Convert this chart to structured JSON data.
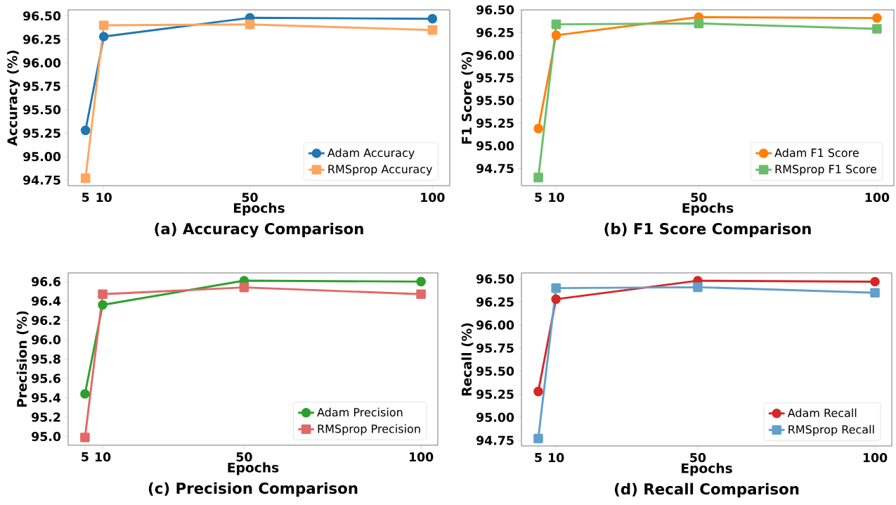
{
  "chart_data": [
    {
      "type": "line",
      "title": "(a) Accuracy Comparison",
      "xlabel": "Epochs",
      "ylabel": "Accuracy (%)",
      "x": [
        5,
        10,
        50,
        100
      ],
      "legend": "bottom right",
      "series": [
        {
          "name": "Adam Accuracy",
          "color": "#1f77b4",
          "marker": "circle",
          "values": [
            95.28,
            96.28,
            96.48,
            96.47
          ]
        },
        {
          "name": "RMSprop Accuracy",
          "color": "#ffa55e",
          "marker": "square",
          "values": [
            94.77,
            96.4,
            96.41,
            96.35
          ]
        }
      ],
      "xlim": [
        0.25,
        104.75
      ],
      "ylim": [
        94.69,
        96.565
      ],
      "xticks": [
        5,
        10,
        50,
        100
      ],
      "yticks": [
        94.75,
        {
          "value": 95,
          "label": "95.00"
        },
        {
          "value": 95.25,
          "label": "95.25"
        },
        {
          "value": 95.5,
          "label": "95.50"
        },
        {
          "value": 95.75,
          "label": "95.75"
        },
        {
          "value": 96,
          "label": "96.00"
        },
        {
          "value": 96.25,
          "label": "96.25"
        },
        {
          "value": 96.5,
          "label": "96.50"
        }
      ]
    },
    {
      "type": "line",
      "title": "(b) F1 Score Comparison",
      "xlabel": "Epochs",
      "ylabel": "F1 Score (%)",
      "x": [
        5,
        10,
        50,
        100
      ],
      "legend": "bottom right",
      "series": [
        {
          "name": "Adam F1 Score",
          "color": "#ff7f0e",
          "marker": "circle",
          "values": [
            95.19,
            96.22,
            96.42,
            96.41
          ]
        },
        {
          "name": "RMSprop F1 Score",
          "color": "#6bbd6b",
          "marker": "square",
          "values": [
            94.65,
            96.34,
            96.35,
            96.29
          ]
        }
      ],
      "xlim": [
        0.25,
        104.75
      ],
      "ylim": [
        94.56,
        96.5
      ],
      "xticks": [
        5,
        10,
        50,
        100
      ],
      "yticks": [
        94.75,
        {
          "value": 95,
          "label": "95.00"
        },
        {
          "value": 95.25,
          "label": "95.25"
        },
        {
          "value": 95.5,
          "label": "95.50"
        },
        {
          "value": 95.75,
          "label": "95.75"
        },
        {
          "value": 96,
          "label": "96.00"
        },
        {
          "value": 96.25,
          "label": "96.25"
        },
        {
          "value": 96.5,
          "label": "96.50"
        }
      ]
    },
    {
      "type": "line",
      "title": "(c) Precision Comparison",
      "xlabel": "Epochs",
      "ylabel": "Precision (%)",
      "x": [
        5,
        10,
        50,
        100
      ],
      "legend": "bottom right",
      "series": [
        {
          "name": "Adam Precision",
          "color": "#2ca02c",
          "marker": "circle",
          "values": [
            95.44,
            96.36,
            96.61,
            96.6
          ]
        },
        {
          "name": "RMSprop Precision",
          "color": "#e26868",
          "marker": "square",
          "values": [
            94.99,
            96.47,
            96.54,
            96.47
          ]
        }
      ],
      "xlim": [
        0.25,
        104.75
      ],
      "ylim": [
        94.91,
        96.69
      ],
      "xticks": [
        5,
        10,
        50,
        100
      ],
      "yticks": [
        {
          "value": 95,
          "label": "95.0"
        },
        95.2,
        95.4,
        95.6,
        95.8,
        {
          "value": 96,
          "label": "96.0"
        },
        96.2,
        96.4,
        96.6
      ]
    },
    {
      "type": "line",
      "title": "(d) Recall Comparison",
      "xlabel": "Epochs",
      "ylabel": "Recall (%)",
      "x": [
        5,
        10,
        50,
        100
      ],
      "legend": "bottom right",
      "series": [
        {
          "name": "Adam Recall",
          "color": "#d62728",
          "marker": "circle",
          "values": [
            95.28,
            96.28,
            96.48,
            96.47
          ]
        },
        {
          "name": "RMSprop Recall",
          "color": "#62a0cb",
          "marker": "square",
          "values": [
            94.77,
            96.4,
            96.41,
            96.35
          ]
        }
      ],
      "xlim": [
        0.25,
        104.75
      ],
      "ylim": [
        94.69,
        96.565
      ],
      "xticks": [
        5,
        10,
        50,
        100
      ],
      "yticks": [
        94.75,
        {
          "value": 95,
          "label": "95.00"
        },
        {
          "value": 95.25,
          "label": "95.25"
        },
        {
          "value": 95.5,
          "label": "95.50"
        },
        {
          "value": 95.75,
          "label": "95.75"
        },
        {
          "value": 96,
          "label": "96.00"
        },
        {
          "value": 96.25,
          "label": "96.25"
        },
        {
          "value": 96.5,
          "label": "96.50"
        }
      ]
    }
  ]
}
